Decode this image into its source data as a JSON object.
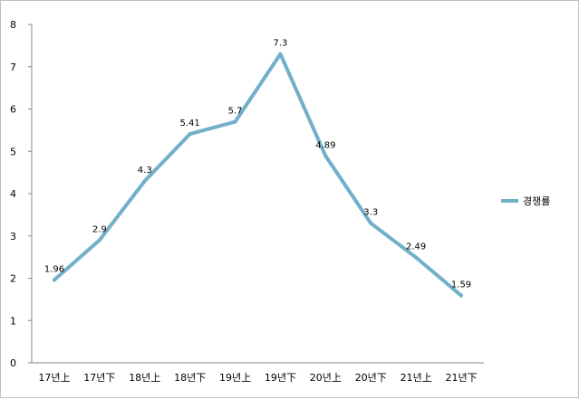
{
  "chart_data": {
    "type": "line",
    "title": "",
    "xlabel": "",
    "ylabel": "",
    "categories": [
      "17년上",
      "17년下",
      "18년上",
      "18년下",
      "19년上",
      "19년下",
      "20년上",
      "20년下",
      "21년上",
      "21년下"
    ],
    "series": [
      {
        "name": "경쟁률",
        "values": [
          1.96,
          2.9,
          4.3,
          5.41,
          5.7,
          7.3,
          4.89,
          3.3,
          2.49,
          1.59
        ],
        "labels": [
          "1.96",
          "2.9",
          "4.3",
          "5.41",
          "5.7",
          "7.3",
          "4.89",
          "3.3",
          "2.49",
          "1.59"
        ],
        "color": "#72afc9"
      }
    ],
    "ylim": [
      0,
      8
    ],
    "yticks": [
      "0",
      "1",
      "2",
      "3",
      "4",
      "5",
      "6",
      "7",
      "8"
    ],
    "grid": false,
    "legend_position": "right"
  }
}
